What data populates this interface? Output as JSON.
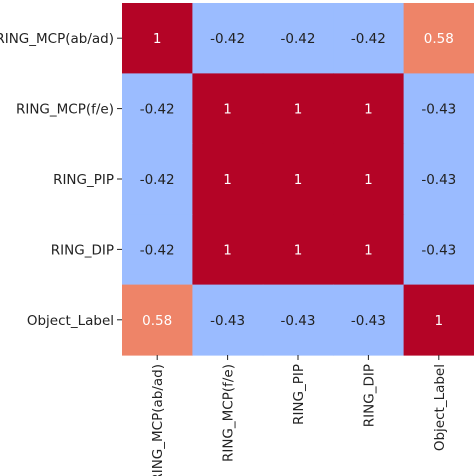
{
  "chart_data": {
    "type": "heatmap",
    "title": "",
    "xlabel": "",
    "ylabel": "",
    "rows": [
      "RING_MCP(ab/ad)",
      "RING_MCP(f/e)",
      "RING_PIP",
      "RING_DIP",
      "Object_Label"
    ],
    "columns": [
      "RING_MCP(ab/ad)",
      "RING_MCP(f/e)",
      "RING_PIP",
      "RING_DIP",
      "Object_Label"
    ],
    "values": [
      [
        1,
        -0.42,
        -0.42,
        -0.42,
        0.58
      ],
      [
        -0.42,
        1,
        1,
        1,
        -0.43
      ],
      [
        -0.42,
        1,
        1,
        1,
        -0.43
      ],
      [
        -0.42,
        1,
        1,
        1,
        -0.43
      ],
      [
        0.58,
        -0.43,
        -0.43,
        -0.43,
        1
      ]
    ],
    "value_labels": [
      [
        "1",
        "-0.42",
        "-0.42",
        "-0.42",
        "0.58"
      ],
      [
        "-0.42",
        "1",
        "1",
        "1",
        "-0.43"
      ],
      [
        "-0.42",
        "1",
        "1",
        "1",
        "-0.43"
      ],
      [
        "-0.42",
        "1",
        "1",
        "1",
        "-0.43"
      ],
      [
        "0.58",
        "-0.43",
        "-0.43",
        "-0.43",
        "1"
      ]
    ],
    "colormap": "coolwarm",
    "color_scale": {
      "1": "#b40426",
      "0.58": "#ee8468",
      "-0.42": "#9bbcff",
      "-0.43": "#9abbff"
    },
    "text_colors": {
      "dark_cell": "#ffffff",
      "light_cell": "#222222"
    },
    "grid": false,
    "legend": "none"
  }
}
